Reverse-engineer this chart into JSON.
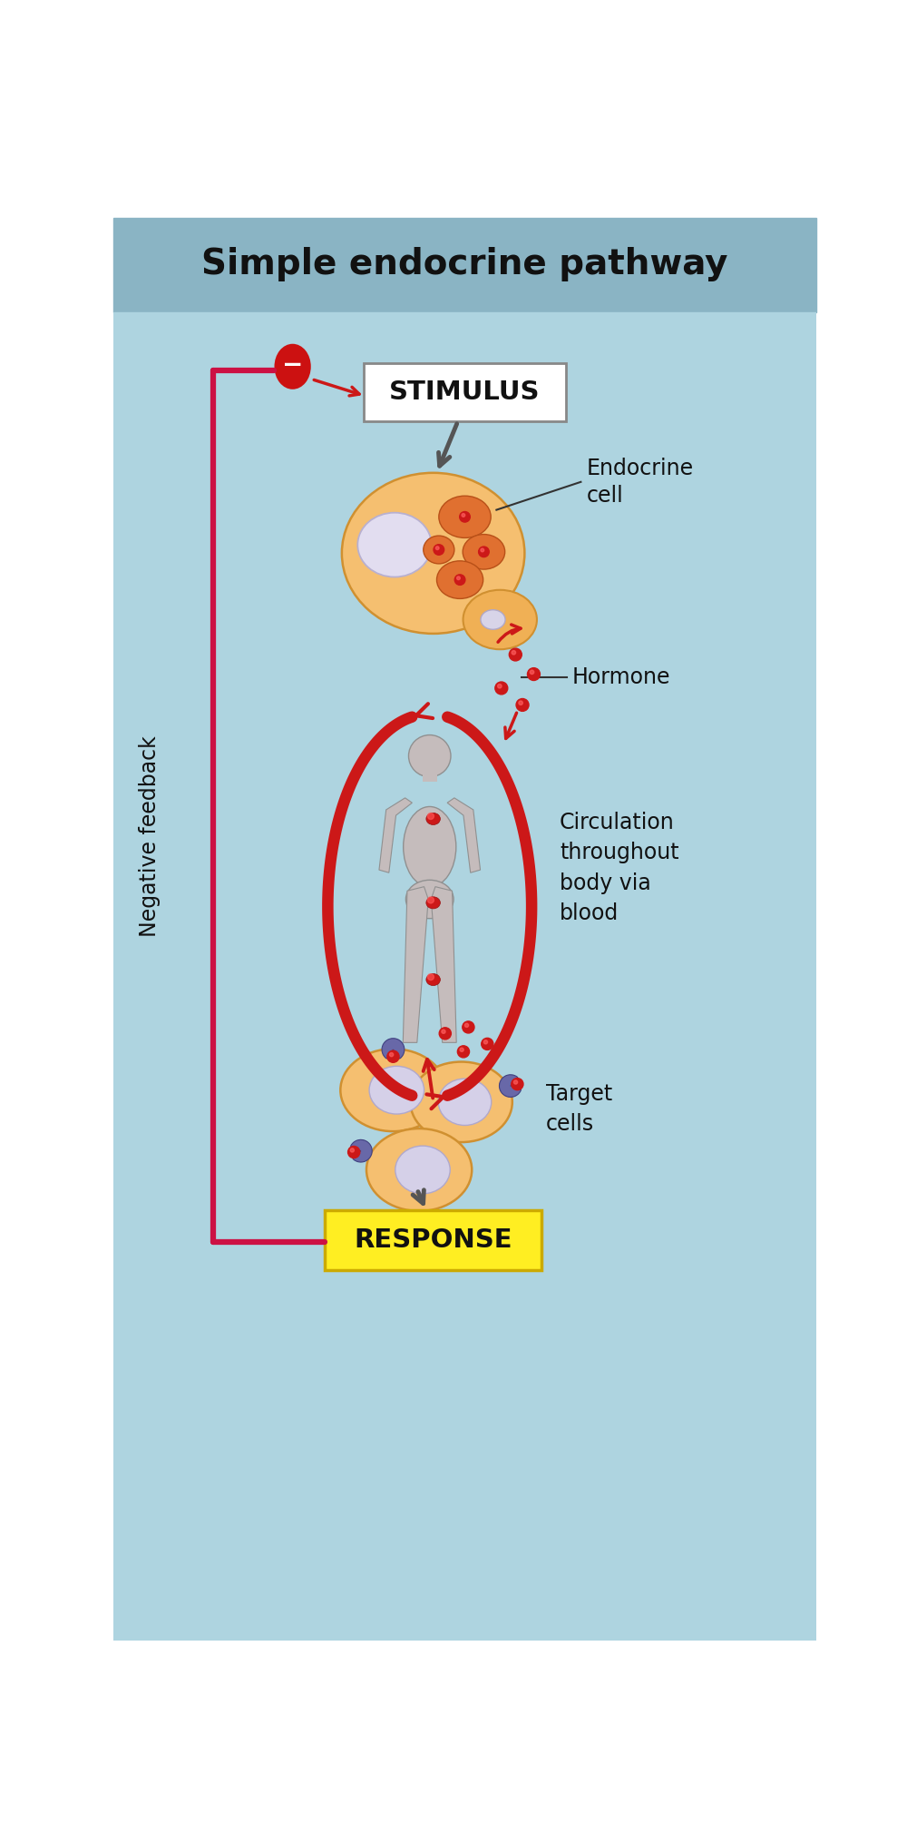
{
  "title": "Simple endocrine pathway",
  "title_fontsize": 28,
  "title_fontweight": "bold",
  "bg_top_color": "#9bbfcc",
  "bg_bottom_color": "#aed4e0",
  "stimulus_label": "STIMULUS",
  "response_label": "RESPONSE",
  "endocrine_label": "Endocrine\ncell",
  "hormone_label": "Hormone",
  "circulation_label": "Circulation\nthroughout\nbody via\nblood",
  "target_label": "Target\ncells",
  "negative_feedback_label": "Negative feedback",
  "cell_color_light": "#f5bf70",
  "cell_color_dark": "#eba040",
  "organelle_color": "#e07830",
  "nucleus_color": "#d8d4e8",
  "red_dot_color": "#cc1818",
  "arrow_red": "#cc1818",
  "arrow_gray": "#555555",
  "feedback_line_color": "#cc1144",
  "minus_bg": "#cc1111",
  "stimulus_box_color": "#ffffff",
  "stimulus_border": "#888888",
  "response_box_color": "#ffee22",
  "response_border": "#ccaa00",
  "body_color": "#c0b8b8",
  "body_border": "#908888",
  "label_fontsize": 17,
  "receptor_color": "#6868a8"
}
